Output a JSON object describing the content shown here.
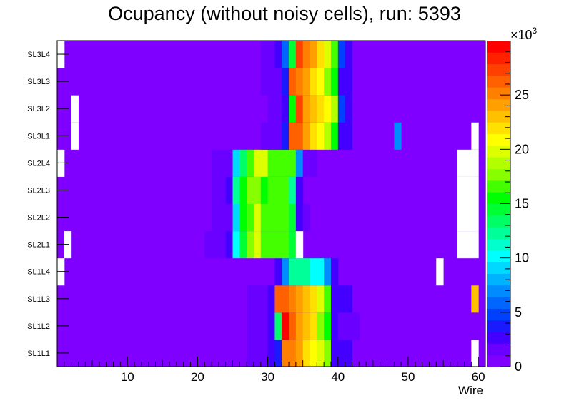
{
  "chart_data": {
    "type": "heatmap",
    "title": "Ocupancy (without noisy cells), run: 5393",
    "xlabel": "Wire",
    "ylabel": "",
    "x_range": [
      0,
      61
    ],
    "x_ticks": [
      10,
      20,
      30,
      40,
      50,
      60
    ],
    "x_tick_labels": [
      "10",
      "20",
      "30",
      "40",
      "50",
      "60"
    ],
    "layers": [
      "SL1L1",
      "SL1L2",
      "SL1L3",
      "SL1L4",
      "SL2L1",
      "SL2L2",
      "SL2L3",
      "SL2L4",
      "SL3L1",
      "SL3L2",
      "SL3L3",
      "SL3L4"
    ],
    "z_range": [
      0,
      30
    ],
    "z_ticks": [
      0,
      5,
      10,
      15,
      20,
      25
    ],
    "z_tick_labels": [
      "0",
      "5",
      "10",
      "15",
      "20",
      "25"
    ],
    "z_multiplier_base": "×10",
    "z_multiplier_exp": "3",
    "z_units": "thousands of hits",
    "background_value": 1,
    "palette": [
      "#7f00ff",
      "#6a00ff",
      "#4400ff",
      "#1a1aff",
      "#0040ff",
      "#0066ff",
      "#008cff",
      "#00b3ff",
      "#00d9ff",
      "#00ffff",
      "#00ffcc",
      "#00ff99",
      "#00ff66",
      "#00ff33",
      "#00ff00",
      "#44ff00",
      "#88ff00",
      "#b2ff00",
      "#ddff00",
      "#ffff00",
      "#ffe000",
      "#ffc000",
      "#ffa000",
      "#ff8000",
      "#ff6000",
      "#ff4000",
      "#ff2000",
      "#ff0000"
    ],
    "rows": [
      {
        "layer": "SL1L1",
        "empty": [
          60
        ],
        "cells": [
          [
            28,
            2
          ],
          [
            29,
            2
          ],
          [
            30,
            2
          ],
          [
            31,
            3
          ],
          [
            32,
            4
          ],
          [
            33,
            25
          ],
          [
            34,
            25
          ],
          [
            35,
            24
          ],
          [
            36,
            22
          ],
          [
            37,
            21
          ],
          [
            38,
            20
          ],
          [
            39,
            18
          ],
          [
            40,
            3
          ],
          [
            41,
            3
          ],
          [
            42,
            3
          ]
        ]
      },
      {
        "layer": "SL1L2",
        "empty": [],
        "cells": [
          [
            28,
            2
          ],
          [
            29,
            2
          ],
          [
            30,
            2
          ],
          [
            31,
            3
          ],
          [
            32,
            13
          ],
          [
            33,
            29
          ],
          [
            34,
            26
          ],
          [
            35,
            24
          ],
          [
            36,
            23
          ],
          [
            37,
            22
          ],
          [
            38,
            18
          ],
          [
            39,
            16
          ],
          [
            40,
            3
          ],
          [
            41,
            2
          ],
          [
            42,
            2
          ],
          [
            43,
            2
          ]
        ]
      },
      {
        "layer": "SL1L3",
        "empty": [],
        "cells": [
          [
            28,
            2
          ],
          [
            29,
            2
          ],
          [
            30,
            2
          ],
          [
            31,
            3
          ],
          [
            32,
            26
          ],
          [
            33,
            26
          ],
          [
            34,
            25
          ],
          [
            35,
            24
          ],
          [
            36,
            23
          ],
          [
            37,
            22
          ],
          [
            38,
            20
          ],
          [
            39,
            17
          ],
          [
            40,
            3
          ],
          [
            41,
            3
          ],
          [
            42,
            3
          ],
          [
            60,
            23
          ]
        ]
      },
      {
        "layer": "SL1L4",
        "empty": [
          1,
          55
        ],
        "cells": [
          [
            32,
            3
          ],
          [
            33,
            7
          ],
          [
            34,
            12
          ],
          [
            35,
            12
          ],
          [
            36,
            12
          ],
          [
            37,
            10
          ],
          [
            38,
            10
          ],
          [
            39,
            7
          ],
          [
            40,
            3
          ]
        ]
      },
      {
        "layer": "SL2L1",
        "empty": [
          2,
          35,
          58,
          59,
          60
        ],
        "cells": [
          [
            22,
            2
          ],
          [
            23,
            2
          ],
          [
            24,
            2
          ],
          [
            25,
            3
          ],
          [
            26,
            10
          ],
          [
            27,
            14
          ],
          [
            28,
            18
          ],
          [
            29,
            20
          ],
          [
            30,
            17
          ],
          [
            31,
            17
          ],
          [
            32,
            17
          ],
          [
            33,
            17
          ],
          [
            34,
            14
          ]
        ]
      },
      {
        "layer": "SL2L2",
        "empty": [
          58,
          59,
          60
        ],
        "cells": [
          [
            23,
            2
          ],
          [
            24,
            2
          ],
          [
            25,
            2
          ],
          [
            26,
            9
          ],
          [
            27,
            15
          ],
          [
            28,
            17
          ],
          [
            29,
            20
          ],
          [
            30,
            17
          ],
          [
            31,
            17
          ],
          [
            32,
            17
          ],
          [
            33,
            17
          ],
          [
            34,
            14
          ],
          [
            35,
            3
          ],
          [
            36,
            2
          ]
        ]
      },
      {
        "layer": "SL2L3",
        "empty": [
          58,
          59,
          60
        ],
        "cells": [
          [
            23,
            2
          ],
          [
            24,
            2
          ],
          [
            25,
            3
          ],
          [
            26,
            12
          ],
          [
            27,
            16
          ],
          [
            28,
            18
          ],
          [
            29,
            18
          ],
          [
            30,
            15
          ],
          [
            31,
            17
          ],
          [
            32,
            17
          ],
          [
            33,
            17
          ],
          [
            34,
            12
          ],
          [
            35,
            3
          ]
        ]
      },
      {
        "layer": "SL2L4",
        "empty": [
          1,
          58,
          59,
          60
        ],
        "cells": [
          [
            23,
            2
          ],
          [
            24,
            2
          ],
          [
            25,
            2
          ],
          [
            26,
            9
          ],
          [
            27,
            13
          ],
          [
            28,
            17
          ],
          [
            29,
            20
          ],
          [
            30,
            20
          ],
          [
            31,
            17
          ],
          [
            32,
            17
          ],
          [
            33,
            17
          ],
          [
            34,
            17
          ],
          [
            35,
            7
          ],
          [
            36,
            2
          ],
          [
            37,
            2
          ]
        ]
      },
      {
        "layer": "SL3L1",
        "empty": [
          3,
          60
        ],
        "cells": [
          [
            30,
            2
          ],
          [
            31,
            2
          ],
          [
            32,
            2
          ],
          [
            33,
            4
          ],
          [
            34,
            26
          ],
          [
            35,
            26
          ],
          [
            36,
            24
          ],
          [
            37,
            22
          ],
          [
            38,
            21
          ],
          [
            39,
            19
          ],
          [
            40,
            16
          ],
          [
            41,
            3
          ],
          [
            42,
            3
          ],
          [
            49,
            7
          ]
        ]
      },
      {
        "layer": "SL3L2",
        "empty": [
          3
        ],
        "cells": [
          [
            31,
            2
          ],
          [
            32,
            2
          ],
          [
            33,
            3
          ],
          [
            34,
            15
          ],
          [
            35,
            27
          ],
          [
            36,
            24
          ],
          [
            37,
            23
          ],
          [
            38,
            22
          ],
          [
            39,
            21
          ],
          [
            40,
            19
          ],
          [
            41,
            5
          ],
          [
            42,
            3
          ]
        ]
      },
      {
        "layer": "SL3L3",
        "empty": [],
        "cells": [
          [
            30,
            2
          ],
          [
            31,
            2
          ],
          [
            32,
            2
          ],
          [
            33,
            4
          ],
          [
            34,
            26
          ],
          [
            35,
            25
          ],
          [
            36,
            24
          ],
          [
            37,
            22
          ],
          [
            38,
            21
          ],
          [
            39,
            18
          ],
          [
            40,
            16
          ],
          [
            41,
            3
          ],
          [
            42,
            3
          ]
        ]
      },
      {
        "layer": "SL3L4",
        "empty": [
          1
        ],
        "cells": [
          [
            30,
            2
          ],
          [
            31,
            2
          ],
          [
            32,
            3
          ],
          [
            33,
            6
          ],
          [
            34,
            14
          ],
          [
            35,
            27
          ],
          [
            36,
            25
          ],
          [
            37,
            24
          ],
          [
            38,
            22
          ],
          [
            39,
            20
          ],
          [
            40,
            17
          ],
          [
            41,
            5
          ],
          [
            42,
            3
          ]
        ]
      }
    ]
  }
}
